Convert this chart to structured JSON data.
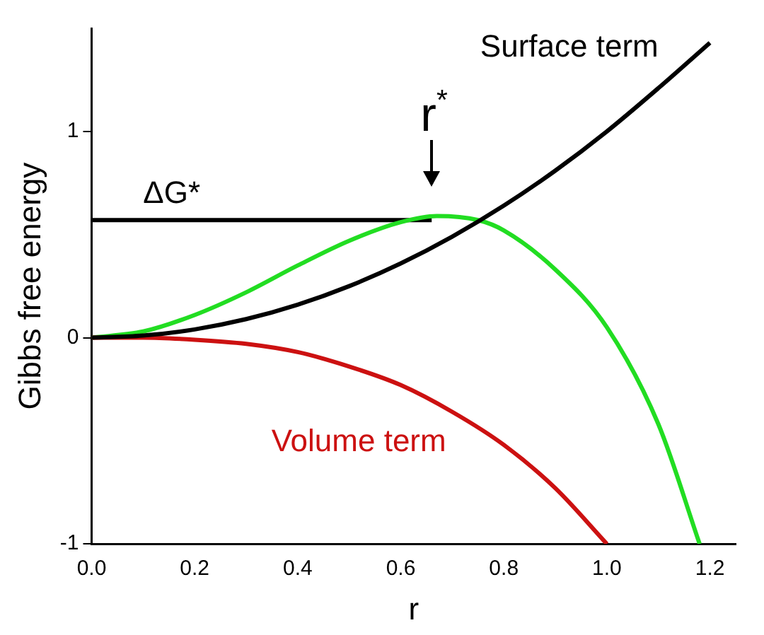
{
  "chart_data": {
    "type": "line",
    "xlabel": "r",
    "ylabel": "Gibbs free energy",
    "xlim": [
      0,
      1.25
    ],
    "ylim": [
      -1,
      1.5
    ],
    "xticks": [
      {
        "value": 0,
        "label": "0.0"
      },
      {
        "value": 0.2,
        "label": "0.2"
      },
      {
        "value": 0.4,
        "label": "0.4"
      },
      {
        "value": 0.6,
        "label": "0.6"
      },
      {
        "value": 0.8,
        "label": "0.8"
      },
      {
        "value": 1,
        "label": "1.0"
      },
      {
        "value": 1.2,
        "label": "1.2"
      }
    ],
    "yticks": [
      -1,
      0,
      1
    ],
    "grid": false,
    "legend": false,
    "marker": "none",
    "line_style": "solid",
    "series": [
      {
        "name": "Surface term",
        "color": "#000000",
        "x": [
          0,
          0.1,
          0.2,
          0.3,
          0.4,
          0.5,
          0.6,
          0.7,
          0.8,
          0.9,
          1.0,
          1.1,
          1.2
        ],
        "values": [
          0,
          0.01,
          0.04,
          0.09,
          0.16,
          0.25,
          0.36,
          0.49,
          0.64,
          0.81,
          1.0,
          1.21,
          1.43
        ]
      },
      {
        "name": "Volume term",
        "color": "#cc1111",
        "x": [
          0,
          0.1,
          0.2,
          0.3,
          0.4,
          0.5,
          0.6,
          0.7,
          0.8,
          0.9,
          1.0
        ],
        "values": [
          0,
          0,
          -0.01,
          -0.03,
          -0.07,
          -0.14,
          -0.23,
          -0.36,
          -0.52,
          -0.73,
          -1.0
        ]
      },
      {
        "color": "#22dd22",
        "x": [
          0,
          0.1,
          0.2,
          0.3,
          0.4,
          0.5,
          0.6,
          0.67,
          0.75,
          0.8,
          0.9,
          1.0,
          1.1,
          1.18
        ],
        "values": [
          0,
          0.03,
          0.11,
          0.22,
          0.35,
          0.47,
          0.56,
          0.59,
          0.57,
          0.52,
          0.33,
          0.05,
          -0.42,
          -1.0
        ]
      },
      {
        "color": "#000000",
        "x": [
          0,
          0.66
        ],
        "values": [
          0.57,
          0.57
        ]
      }
    ],
    "annotations": [
      {
        "text": "ΔG*",
        "x": 0.1,
        "y": 0.57
      },
      {
        "text": "r$^{*}$",
        "x": 0.66,
        "y": 0.59
      }
    ]
  }
}
